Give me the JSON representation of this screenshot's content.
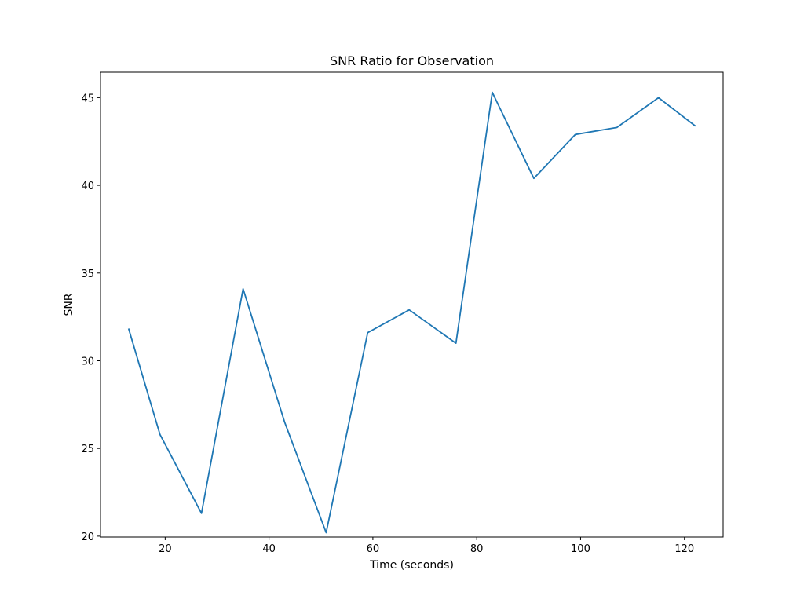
{
  "chart_data": {
    "type": "line",
    "title": "SNR Ratio for Observation",
    "xlabel": "Time (seconds)",
    "ylabel": "SNR",
    "xlim": [
      7.55,
      127.45
    ],
    "ylim": [
      19.95,
      46.45
    ],
    "xticks": [
      20,
      40,
      60,
      80,
      100,
      120
    ],
    "yticks": [
      20,
      25,
      30,
      35,
      40,
      45
    ],
    "grid": false,
    "series": [
      {
        "name": "SNR",
        "color": "#1f77b4",
        "x": [
          13,
          19,
          27,
          35,
          43,
          51,
          59,
          67,
          76,
          83,
          91,
          99,
          107,
          115,
          122
        ],
        "y": [
          31.8,
          25.8,
          21.3,
          34.1,
          26.5,
          20.2,
          31.6,
          32.9,
          31.0,
          45.3,
          40.4,
          42.9,
          43.3,
          45.0,
          43.4
        ]
      }
    ]
  }
}
